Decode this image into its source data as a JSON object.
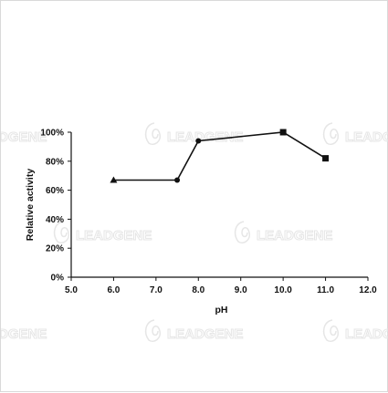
{
  "watermark": {
    "text": "LEADGENE"
  },
  "chart_data": {
    "type": "line",
    "title": "",
    "xlabel": "pH",
    "ylabel": "Relative activity",
    "xlim": [
      5.0,
      12.0
    ],
    "ylim": [
      0,
      100
    ],
    "x_ticks": [
      "5.0",
      "6.0",
      "7.0",
      "8.0",
      "9.0",
      "10.0",
      "11.0",
      "12.0"
    ],
    "x_tick_values": [
      5,
      6,
      7,
      8,
      9,
      10,
      11,
      12
    ],
    "y_ticks": [
      "0%",
      "20%",
      "40%",
      "60%",
      "80%",
      "100%"
    ],
    "y_tick_values": [
      0,
      20,
      40,
      60,
      80,
      100
    ],
    "grid": false,
    "legend": "none",
    "series": [
      {
        "color": "#111111",
        "points": [
          {
            "x": 6.0,
            "y": 67,
            "marker": "triangle"
          },
          {
            "x": 7.5,
            "y": 67,
            "marker": "circle"
          },
          {
            "x": 8.0,
            "y": 94,
            "marker": "circle"
          },
          {
            "x": 10.0,
            "y": 100,
            "marker": "square"
          },
          {
            "x": 11.0,
            "y": 82,
            "marker": "square"
          }
        ]
      }
    ]
  }
}
